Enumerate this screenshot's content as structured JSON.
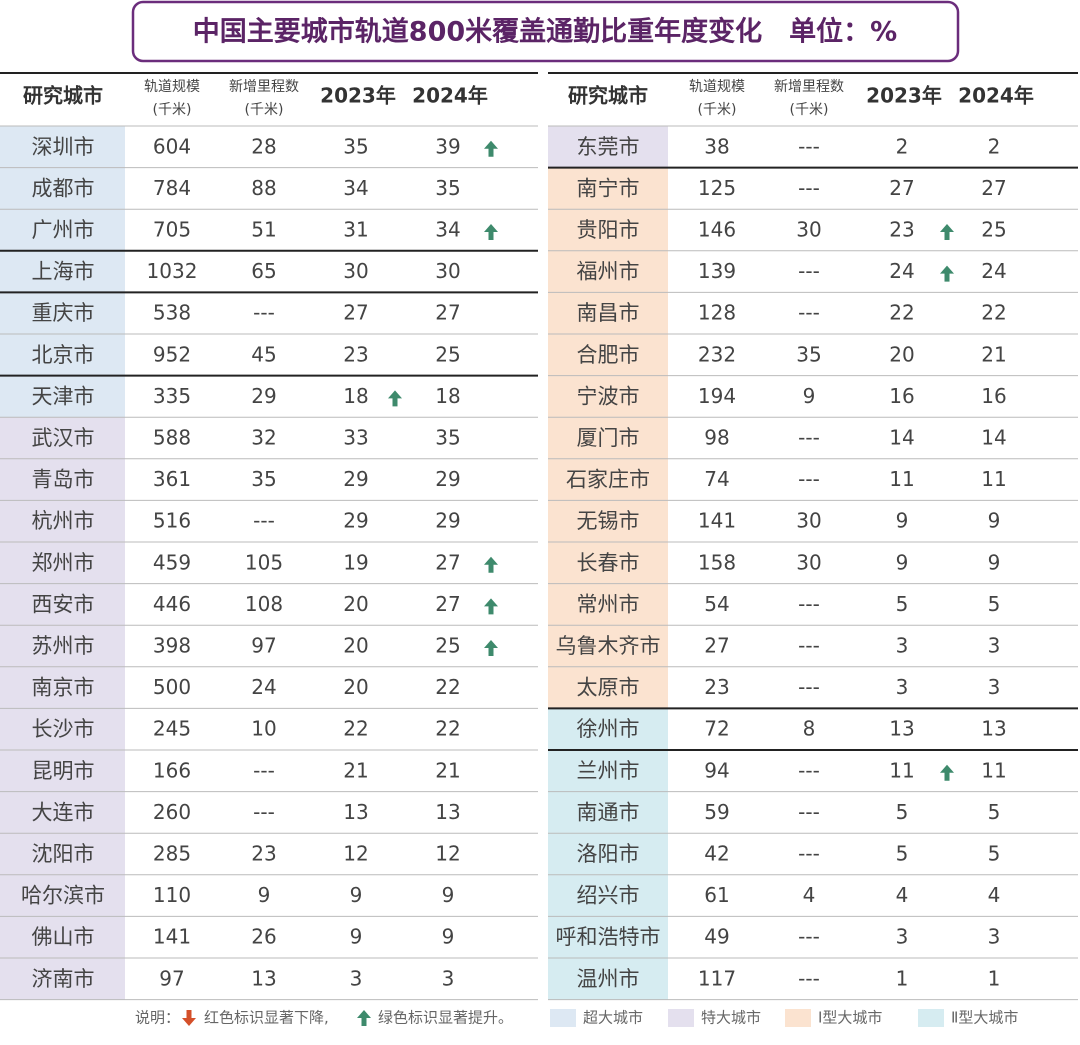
{
  "title": "中国主要城市轨道800米覆盖通勤比重年度变化　单位：%",
  "groups": [
    {
      "name": "超大城市",
      "color": "#dde8f3"
    },
    {
      "name": "特大城市",
      "color": "#e4e0ee"
    },
    {
      "name": "Ⅰ型大城市",
      "color": "#fbe3d0"
    },
    {
      "name": "Ⅱ型大城市",
      "color": "#d6ecf1"
    }
  ],
  "note": [
    "说明：",
    "红色标识显著下降,",
    "绿色标识显著提升。"
  ],
  "tables": [
    {
      "header": [
        [
          "研究城市"
        ],
        [
          "轨道规模",
          "(千米)"
        ],
        [
          "新增里程数",
          "(千米)"
        ],
        [
          "2023年"
        ],
        [
          "2024年"
        ]
      ],
      "rows": [
        {
          "cells": [
            "深圳市",
            604,
            28,
            35,
            39
          ],
          "group": 0,
          "up": 4
        },
        {
          "cells": [
            "成都市",
            784,
            88,
            34,
            35
          ],
          "group": 0
        },
        {
          "cells": [
            "广州市",
            705,
            51,
            31,
            34
          ],
          "group": 0,
          "up": 4
        },
        {
          "cells": [
            "上海市",
            1032,
            65,
            30,
            30
          ],
          "group": 0
        },
        {
          "cells": [
            "重庆市",
            538,
            "---",
            27,
            27
          ],
          "group": 0
        },
        {
          "cells": [
            "北京市",
            952,
            45,
            23,
            25
          ],
          "group": 0
        },
        {
          "cells": [
            "天津市",
            335,
            29,
            18,
            18
          ],
          "group": 0,
          "up": 3
        },
        {
          "cells": [
            "武汉市",
            588,
            32,
            33,
            35
          ],
          "group": 1
        },
        {
          "cells": [
            "青岛市",
            361,
            35,
            29,
            29
          ],
          "group": 1
        },
        {
          "cells": [
            "杭州市",
            516,
            "---",
            29,
            29
          ],
          "group": 1
        },
        {
          "cells": [
            "郑州市",
            459,
            105,
            19,
            27
          ],
          "group": 1,
          "up": 4
        },
        {
          "cells": [
            "西安市",
            446,
            108,
            20,
            27
          ],
          "group": 1,
          "up": 4
        },
        {
          "cells": [
            "苏州市",
            398,
            97,
            20,
            25
          ],
          "group": 1,
          "up": 4
        },
        {
          "cells": [
            "南京市",
            500,
            24,
            20,
            22
          ],
          "group": 1
        },
        {
          "cells": [
            "长沙市",
            245,
            10,
            22,
            22
          ],
          "group": 1
        },
        {
          "cells": [
            "昆明市",
            166,
            "---",
            21,
            21
          ],
          "group": 1
        },
        {
          "cells": [
            "大连市",
            260,
            "---",
            13,
            13
          ],
          "group": 1
        },
        {
          "cells": [
            "沈阳市",
            285,
            23,
            12,
            12
          ],
          "group": 1
        },
        {
          "cells": [
            "哈尔滨市",
            110,
            9,
            9,
            9
          ],
          "group": 1
        },
        {
          "cells": [
            "佛山市",
            141,
            26,
            9,
            9
          ],
          "group": 1
        },
        {
          "cells": [
            "济南市",
            97,
            13,
            3,
            3
          ],
          "group": 1
        }
      ]
    },
    {
      "header": [
        [
          "研究城市"
        ],
        [
          "轨道规模",
          "(千米)"
        ],
        [
          "新增里程数",
          "(千米)"
        ],
        [
          "2023年"
        ],
        [
          "2024年"
        ]
      ],
      "rows": [
        {
          "cells": [
            "东莞市",
            38,
            "---",
            2,
            2
          ],
          "group": 1
        },
        {
          "cells": [
            "南宁市",
            125,
            "---",
            27,
            27
          ],
          "group": 2
        },
        {
          "cells": [
            "贵阳市",
            146,
            30,
            23,
            25
          ],
          "group": 2,
          "up": 3
        },
        {
          "cells": [
            "福州市",
            139,
            "---",
            24,
            24
          ],
          "group": 2,
          "up": 3
        },
        {
          "cells": [
            "南昌市",
            128,
            "---",
            22,
            22
          ],
          "group": 2
        },
        {
          "cells": [
            "合肥市",
            232,
            35,
            20,
            21
          ],
          "group": 2
        },
        {
          "cells": [
            "宁波市",
            194,
            9,
            16,
            16
          ],
          "group": 2
        },
        {
          "cells": [
            "厦门市",
            98,
            "---",
            14,
            14
          ],
          "group": 2
        },
        {
          "cells": [
            "石家庄市",
            74,
            "---",
            11,
            11
          ],
          "group": 2
        },
        {
          "cells": [
            "无锡市",
            141,
            30,
            9,
            9
          ],
          "group": 2
        },
        {
          "cells": [
            "长春市",
            158,
            30,
            9,
            9
          ],
          "group": 2
        },
        {
          "cells": [
            "常州市",
            54,
            "---",
            5,
            5
          ],
          "group": 2
        },
        {
          "cells": [
            "乌鲁木齐市",
            27,
            "---",
            3,
            3
          ],
          "group": 2
        },
        {
          "cells": [
            "太原市",
            23,
            "---",
            3,
            3
          ],
          "group": 2
        },
        {
          "cells": [
            "徐州市",
            72,
            8,
            13,
            13
          ],
          "group": 3
        },
        {
          "cells": [
            "兰州市",
            94,
            "---",
            11,
            11
          ],
          "group": 3,
          "up": 3
        },
        {
          "cells": [
            "南通市",
            59,
            "---",
            5,
            5
          ],
          "group": 3
        },
        {
          "cells": [
            "洛阳市",
            42,
            "---",
            5,
            5
          ],
          "group": 3
        },
        {
          "cells": [
            "绍兴市",
            61,
            4,
            4,
            4
          ],
          "group": 3
        },
        {
          "cells": [
            "呼和浩特市",
            49,
            "---",
            3,
            3
          ],
          "group": 3
        },
        {
          "cells": [
            "温州市",
            117,
            "---",
            1,
            1
          ],
          "group": 3
        }
      ]
    }
  ]
}
